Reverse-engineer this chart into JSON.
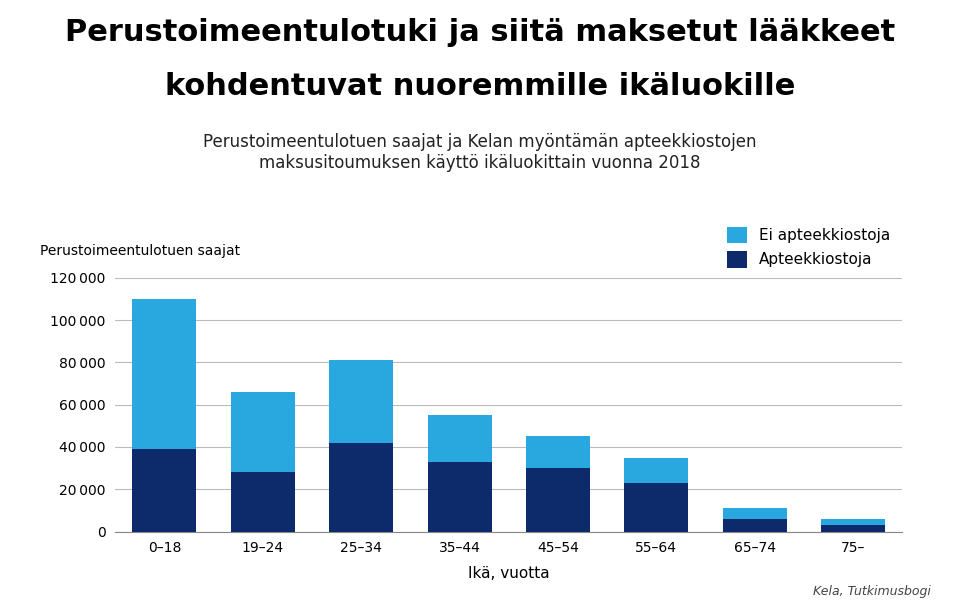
{
  "categories": [
    "0–18",
    "19–24",
    "25–34",
    "35–44",
    "45–54",
    "55–64",
    "65–74",
    "75–"
  ],
  "apteekkiostoja": [
    39000,
    28000,
    42000,
    33000,
    30000,
    23000,
    6000,
    3000
  ],
  "ei_apteekkiostoja": [
    71000,
    38000,
    39000,
    22000,
    15000,
    12000,
    5000,
    3000
  ],
  "color_apteekki": "#0d2b6b",
  "color_ei_apteekki": "#29a8e0",
  "title_line1": "Perustoimeentulotuki ja siitä maksetut lääkkeet",
  "title_line2": "kohdentuvat nuoremmille ikäluokille",
  "subtitle": "Perustoimeentulotuen saajat ja Kelan myöntämän apteekkiostojen\nmaksusitoumuksen käyttö ikäluokittain vuonna 2018",
  "ylabel": "Perustoimeentulotuen saajat",
  "xlabel": "Ikä, vuotta",
  "legend_ei_apteekki": "Ei apteekkiostoja",
  "legend_apteekki": "Apteekkiostoja",
  "source": "Kela, Tutkimusbogi",
  "ylim": [
    0,
    120000
  ],
  "yticks": [
    0,
    20000,
    40000,
    60000,
    80000,
    100000,
    120000
  ],
  "background_color": "#ffffff",
  "title_fontsize": 22,
  "subtitle_fontsize": 12,
  "ylabel_fontsize": 10,
  "xlabel_fontsize": 11,
  "tick_fontsize": 10,
  "legend_fontsize": 11
}
